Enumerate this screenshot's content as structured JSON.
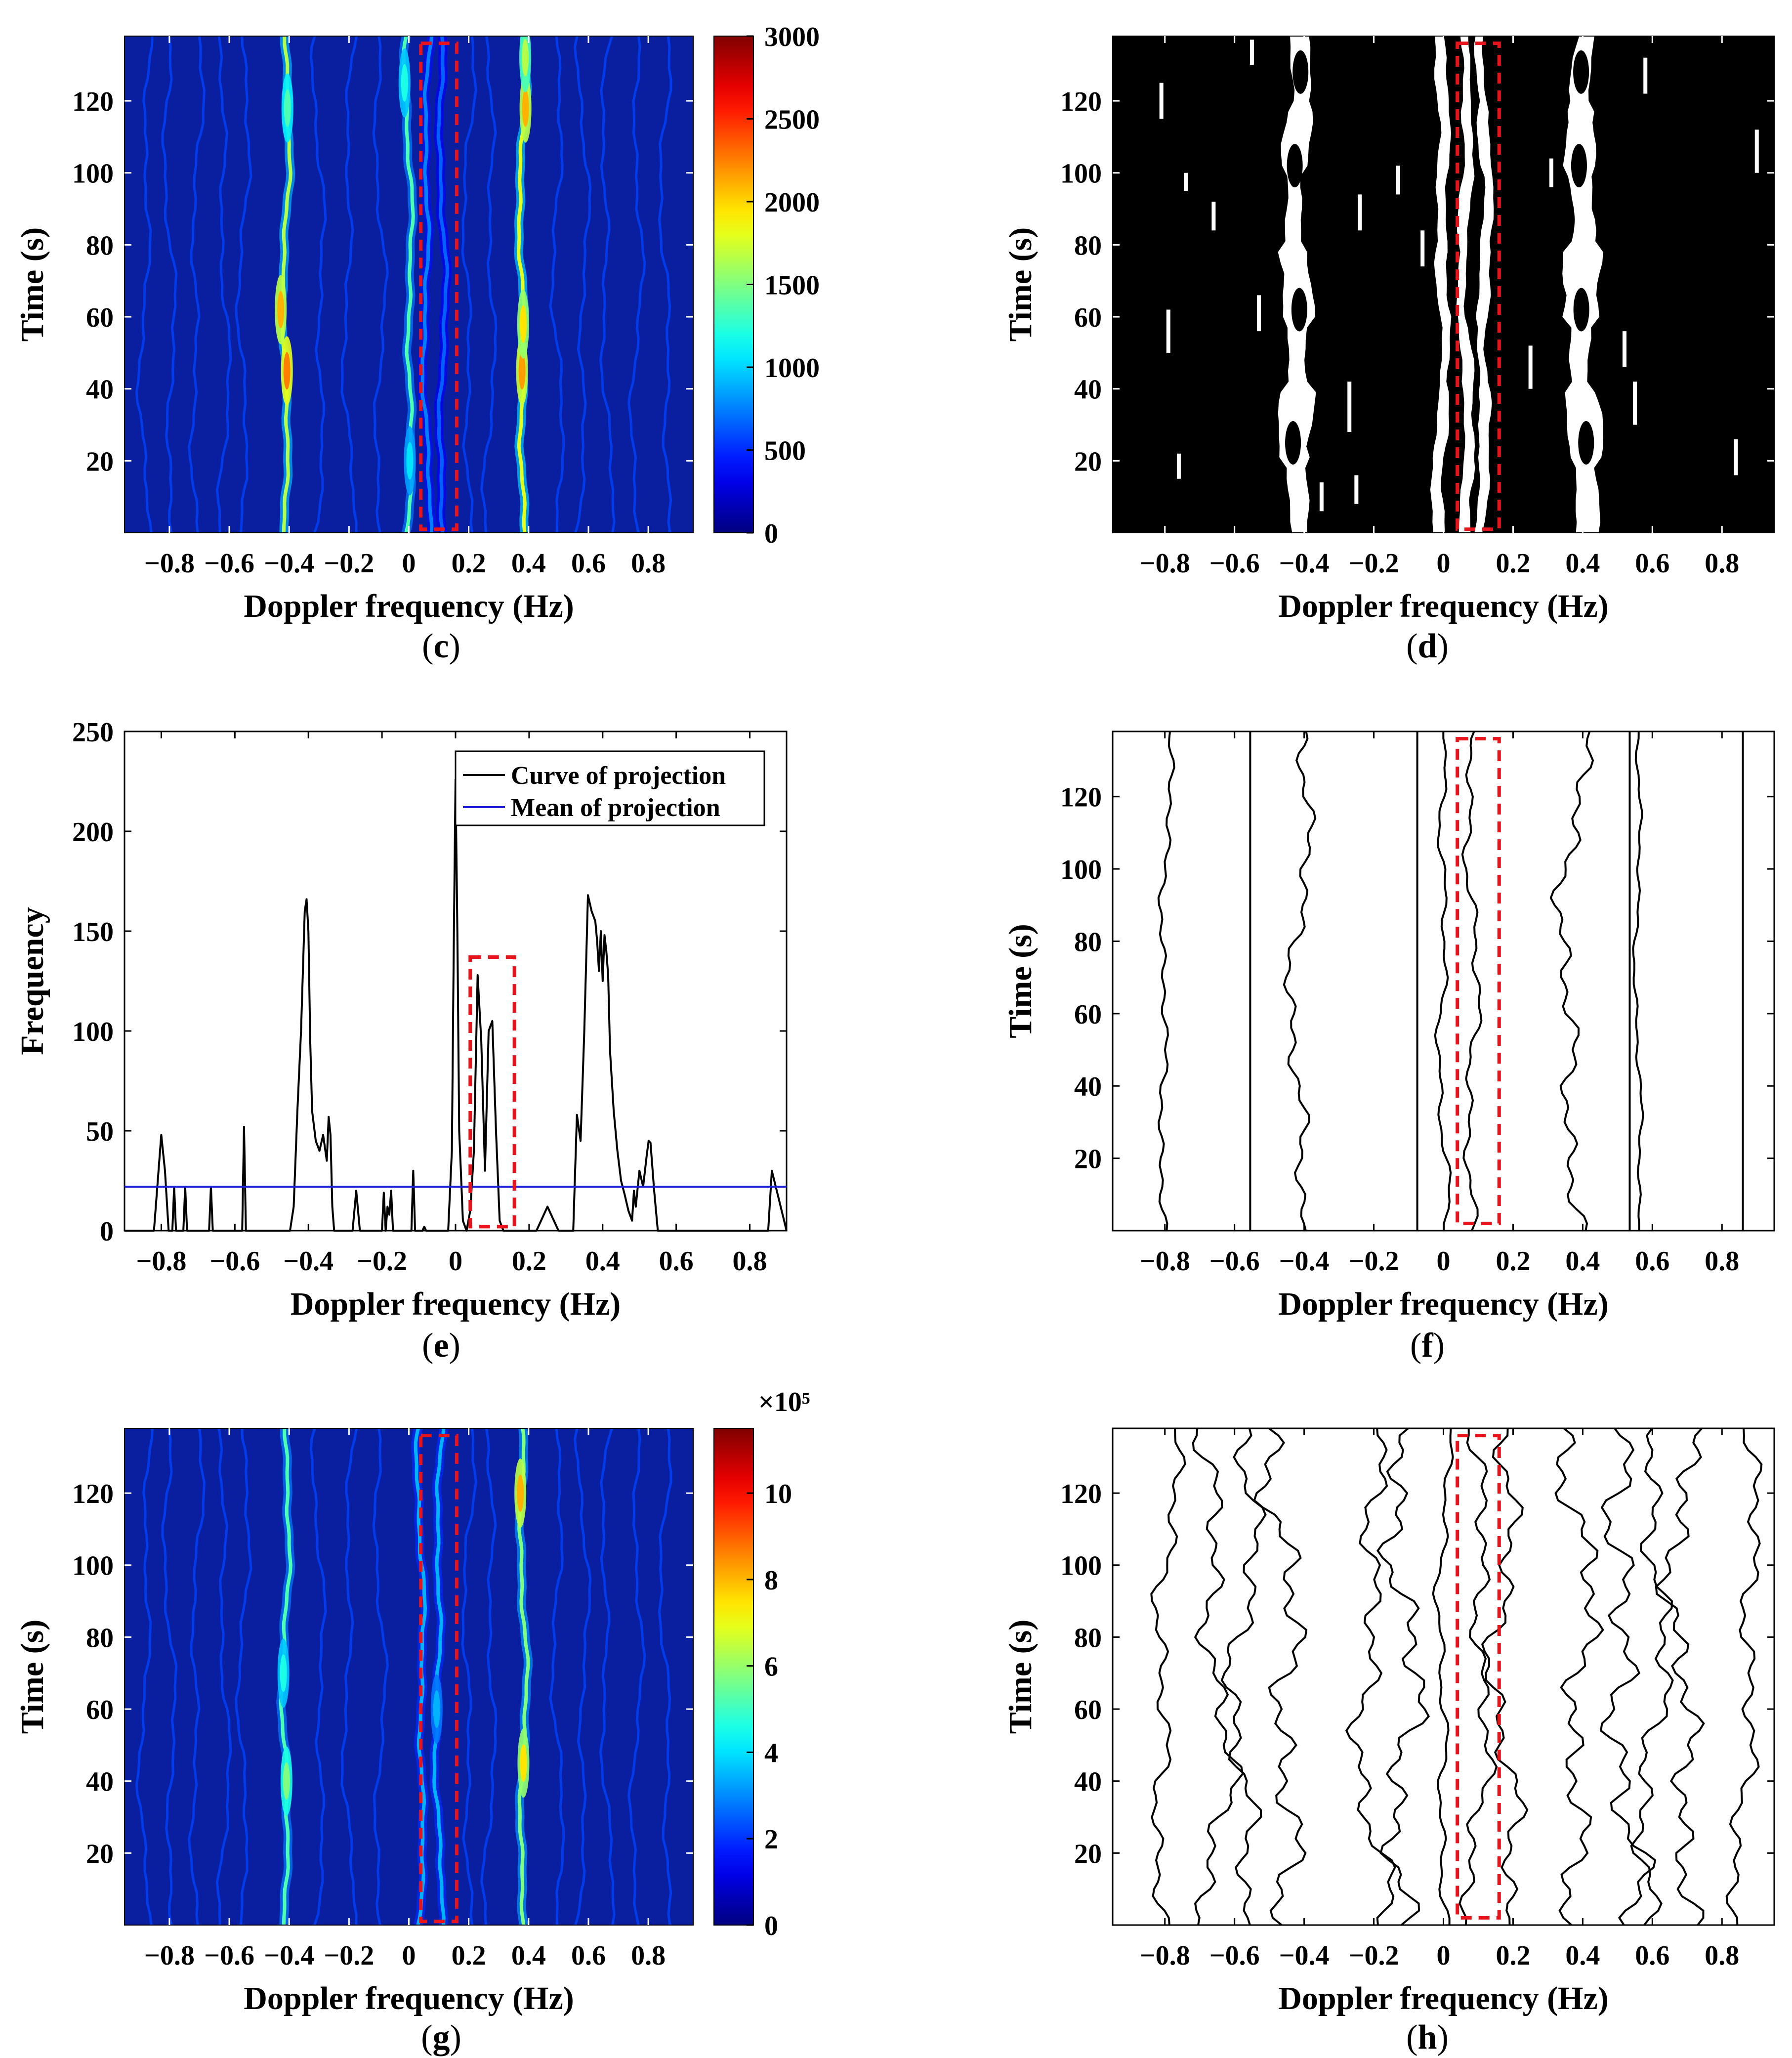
{
  "figure": {
    "colors": {
      "box": "#e8141b",
      "proj_mean": "#1f1fd6",
      "curve": "#000000",
      "heat_bg": "#0a1fa0"
    }
  },
  "chart_data": [
    {
      "id": "c",
      "panel_label": "c",
      "type": "heatmap",
      "xlabel": "Doppler frequency (Hz)",
      "ylabel": "Time (s)",
      "xlim": [
        -0.95,
        0.95
      ],
      "ylim": [
        0,
        138
      ],
      "xticks": [
        "−0.8",
        "−0.6",
        "−0.4",
        "−0.2",
        "0",
        "0.2",
        "0.4",
        "0.6",
        "0.8"
      ],
      "yticks": [
        "20",
        "40",
        "60",
        "80",
        "100",
        "120"
      ],
      "colorbar": {
        "min": 0,
        "max": 3000,
        "ticks": [
          "0",
          "500",
          "1000",
          "1500",
          "2000",
          "2500",
          "3000"
        ],
        "exponent": ""
      },
      "highlight_box": {
        "x": [
          0.04,
          0.16
        ],
        "y": [
          1,
          136
        ]
      },
      "ridges": [
        {
          "f": -0.41,
          "amp": 0.55,
          "hot": [
            [
              45,
              0.75
            ],
            [
              62,
              0.7
            ],
            [
              118,
              0.45
            ]
          ]
        },
        {
          "f": 0.0,
          "amp": 0.45,
          "hot": [
            [
              125,
              0.4
            ],
            [
              20,
              0.35
            ]
          ]
        },
        {
          "f": 0.06,
          "amp": 0.25,
          "hot": []
        },
        {
          "f": 0.11,
          "amp": 0.22,
          "hot": []
        },
        {
          "f": 0.38,
          "amp": 0.6,
          "hot": [
            [
              45,
              0.72
            ],
            [
              58,
              0.65
            ],
            [
              118,
              0.7
            ],
            [
              132,
              0.55
            ]
          ]
        }
      ]
    },
    {
      "id": "d",
      "panel_label": "d",
      "type": "heatmap",
      "xlabel": "Doppler frequency (Hz)",
      "ylabel": "Time (s)",
      "xlim": [
        -0.95,
        0.95
      ],
      "ylim": [
        0,
        138
      ],
      "xticks": [
        "−0.8",
        "−0.6",
        "−0.4",
        "−0.2",
        "0",
        "0.2",
        "0.4",
        "0.6",
        "0.8"
      ],
      "yticks": [
        "20",
        "40",
        "60",
        "80",
        "100",
        "120"
      ],
      "highlight_box": {
        "x": [
          0.04,
          0.16
        ],
        "y": [
          1,
          136
        ]
      },
      "binary_bands": [
        {
          "f": -0.42,
          "w": [
            0.05,
            0.09,
            0.05,
            0.08,
            0.04,
            0.07,
            0.05
          ]
        },
        {
          "f": -0.005,
          "w": [
            0.03,
            0.03,
            0.02,
            0.03,
            0.025,
            0.03,
            0.03
          ]
        },
        {
          "f": 0.065,
          "w": [
            0.03,
            0.025,
            0.03,
            0.02,
            0.03,
            0.025,
            0.02
          ]
        },
        {
          "f": 0.115,
          "w": [
            0.025,
            0.03,
            0.02,
            0.03,
            0.025,
            0.03,
            0.02
          ]
        },
        {
          "f": 0.4,
          "w": [
            0.06,
            0.09,
            0.05,
            0.1,
            0.06,
            0.08,
            0.05
          ]
        }
      ],
      "binary_segments": [
        {
          "f": -0.79,
          "y": [
            50,
            62
          ]
        },
        {
          "f": -0.76,
          "y": [
            15,
            22
          ]
        },
        {
          "f": -0.81,
          "y": [
            115,
            125
          ]
        },
        {
          "f": -0.74,
          "y": [
            95,
            100
          ]
        },
        {
          "f": -0.66,
          "y": [
            84,
            92
          ]
        },
        {
          "f": -0.55,
          "y": [
            130,
            137
          ]
        },
        {
          "f": -0.53,
          "y": [
            56,
            66
          ]
        },
        {
          "f": -0.27,
          "y": [
            28,
            42
          ]
        },
        {
          "f": -0.24,
          "y": [
            84,
            94
          ]
        },
        {
          "f": -0.25,
          "y": [
            8,
            16
          ]
        },
        {
          "f": -0.13,
          "y": [
            94,
            102
          ]
        },
        {
          "f": -0.06,
          "y": [
            74,
            84
          ]
        },
        {
          "f": 0.25,
          "y": [
            40,
            52
          ]
        },
        {
          "f": 0.52,
          "y": [
            46,
            56
          ]
        },
        {
          "f": 0.55,
          "y": [
            30,
            42
          ]
        },
        {
          "f": 0.58,
          "y": [
            122,
            132
          ]
        },
        {
          "f": 0.84,
          "y": [
            16,
            26
          ]
        },
        {
          "f": 0.9,
          "y": [
            100,
            112
          ]
        },
        {
          "f": -0.35,
          "y": [
            6,
            14
          ]
        },
        {
          "f": 0.31,
          "y": [
            96,
            104
          ]
        }
      ]
    },
    {
      "id": "e",
      "panel_label": "e",
      "type": "line",
      "xlabel": "Doppler frequency (Hz)",
      "ylabel": "Frequency",
      "xlim": [
        -0.9,
        0.9
      ],
      "ylim": [
        0,
        250
      ],
      "xticks": [
        "−0.8",
        "−0.6",
        "−0.4",
        "−0.2",
        "0",
        "0.2",
        "0.4",
        "0.6",
        "0.8"
      ],
      "yticks": [
        "0",
        "50",
        "100",
        "150",
        "200",
        "250"
      ],
      "legend": [
        "Curve of projection",
        "Mean of projection"
      ],
      "mean": 22,
      "highlight_box": {
        "x": [
          0.04,
          0.16
        ],
        "y": [
          2,
          137
        ]
      },
      "x": [
        -0.9,
        -0.82,
        -0.8,
        -0.79,
        -0.78,
        -0.77,
        -0.765,
        -0.76,
        -0.755,
        -0.74,
        -0.735,
        -0.73,
        -0.67,
        -0.665,
        -0.66,
        -0.58,
        -0.575,
        -0.57,
        -0.45,
        -0.44,
        -0.43,
        -0.42,
        -0.41,
        -0.405,
        -0.4,
        -0.395,
        -0.39,
        -0.38,
        -0.37,
        -0.36,
        -0.35,
        -0.345,
        -0.34,
        -0.335,
        -0.33,
        -0.32,
        -0.31,
        -0.3,
        -0.28,
        -0.27,
        -0.26,
        -0.2,
        -0.195,
        -0.19,
        -0.185,
        -0.18,
        -0.175,
        -0.17,
        -0.12,
        -0.115,
        -0.11,
        -0.105,
        -0.1,
        -0.09,
        -0.085,
        -0.08,
        -0.02,
        -0.01,
        -0.005,
        0.0,
        0.005,
        0.01,
        0.02,
        0.03,
        0.04,
        0.05,
        0.06,
        0.07,
        0.08,
        0.09,
        0.1,
        0.11,
        0.12,
        0.13,
        0.22,
        0.25,
        0.28,
        0.3,
        0.32,
        0.33,
        0.34,
        0.35,
        0.36,
        0.37,
        0.38,
        0.385,
        0.39,
        0.395,
        0.4,
        0.405,
        0.41,
        0.415,
        0.42,
        0.43,
        0.44,
        0.45,
        0.46,
        0.47,
        0.48,
        0.485,
        0.49,
        0.5,
        0.51,
        0.52,
        0.525,
        0.53,
        0.54,
        0.55,
        0.56,
        0.57,
        0.84,
        0.85,
        0.86,
        0.9
      ],
      "y": [
        0,
        0,
        48,
        30,
        0,
        0,
        22,
        0,
        0,
        0,
        22,
        0,
        0,
        22,
        0,
        0,
        52,
        0,
        0,
        12,
        60,
        100,
        160,
        166,
        150,
        95,
        60,
        45,
        40,
        48,
        35,
        57,
        48,
        12,
        0,
        0,
        0,
        0,
        0,
        20,
        0,
        0,
        19,
        0,
        12,
        8,
        20,
        0,
        0,
        30,
        0,
        0,
        0,
        0,
        2,
        0,
        0,
        40,
        140,
        226,
        150,
        50,
        5,
        0,
        10,
        40,
        128,
        95,
        30,
        100,
        105,
        50,
        5,
        0,
        0,
        12,
        0,
        0,
        0,
        58,
        45,
        100,
        168,
        160,
        155,
        145,
        130,
        150,
        125,
        148,
        140,
        128,
        90,
        60,
        40,
        25,
        18,
        10,
        5,
        20,
        12,
        30,
        22,
        38,
        45,
        44,
        20,
        0,
        0,
        0,
        0,
        0,
        30,
        0
      ]
    },
    {
      "id": "f",
      "panel_label": "f",
      "type": "line",
      "xlabel": "Doppler frequency (Hz)",
      "ylabel": "Time (s)",
      "xlim": [
        -0.95,
        0.95
      ],
      "ylim": [
        0,
        138
      ],
      "xticks": [
        "−0.8",
        "−0.6",
        "−0.4",
        "−0.2",
        "0",
        "0.2",
        "0.4",
        "0.6",
        "0.8"
      ],
      "yticks": [
        "20",
        "40",
        "60",
        "80",
        "100",
        "120"
      ],
      "highlight_box": {
        "x": [
          0.04,
          0.16
        ],
        "y": [
          2,
          136
        ]
      },
      "contours": [
        {
          "f0": -0.8,
          "amp": [
            0.01,
            -0.005,
            0.008,
            -0.006
          ]
        },
        {
          "f0": -0.555,
          "amp": [
            0,
            0,
            0,
            0
          ]
        },
        {
          "f0": -0.41,
          "amp": [
            0.015,
            -0.012,
            0.02,
            -0.01
          ]
        },
        {
          "f0": -0.075,
          "amp": [
            0,
            0,
            0,
            0
          ]
        },
        {
          "f0": 0.0,
          "amp": [
            0.01,
            -0.008,
            0.006,
            -0.004
          ]
        },
        {
          "f0": 0.08,
          "amp": [
            0.012,
            -0.01,
            0.008,
            -0.006
          ]
        },
        {
          "f0": 0.37,
          "amp": [
            0.02,
            -0.015,
            0.025,
            -0.012
          ]
        },
        {
          "f0": 0.535,
          "amp": [
            0,
            0,
            0,
            0
          ]
        },
        {
          "f0": 0.56,
          "amp": [
            0.006,
            -0.004,
            0.005,
            -0.003
          ]
        },
        {
          "f0": 0.86,
          "amp": [
            0,
            0,
            0,
            0
          ]
        }
      ]
    },
    {
      "id": "g",
      "panel_label": "g",
      "type": "heatmap",
      "xlabel": "Doppler frequency (Hz)",
      "ylabel": "Time (s)",
      "xlim": [
        -0.95,
        0.95
      ],
      "ylim": [
        0,
        138
      ],
      "xticks": [
        "−0.8",
        "−0.6",
        "−0.4",
        "−0.2",
        "0",
        "0.2",
        "0.4",
        "0.6",
        "0.8"
      ],
      "yticks": [
        "20",
        "40",
        "60",
        "80",
        "100",
        "120"
      ],
      "colorbar": {
        "min": 0,
        "max": 11.5,
        "ticks": [
          "0",
          "2",
          "4",
          "6",
          "8",
          "10"
        ],
        "exponent": "×10⁵"
      },
      "highlight_box": {
        "x": [
          0.04,
          0.16
        ],
        "y": [
          1,
          136
        ]
      },
      "ridges": [
        {
          "f": -0.41,
          "amp": 0.45,
          "hot": [
            [
              40,
              0.5
            ],
            [
              70,
              0.4
            ]
          ]
        },
        {
          "f": 0.04,
          "amp": 0.3,
          "hot": []
        },
        {
          "f": 0.1,
          "amp": 0.3,
          "hot": [
            [
              60,
              0.3
            ]
          ]
        },
        {
          "f": 0.38,
          "amp": 0.5,
          "hot": [
            [
              45,
              0.65
            ],
            [
              120,
              0.7
            ]
          ]
        }
      ]
    },
    {
      "id": "h",
      "panel_label": "h",
      "type": "line",
      "xlabel": "Doppler frequency (Hz)",
      "ylabel": "Time (s)",
      "xlim": [
        -0.95,
        0.95
      ],
      "ylim": [
        0,
        138
      ],
      "xticks": [
        "−0.8",
        "−0.6",
        "−0.4",
        "−0.2",
        "0",
        "0.2",
        "0.4",
        "0.6",
        "0.8"
      ],
      "yticks": [
        "20",
        "40",
        "60",
        "80",
        "100",
        "120"
      ],
      "highlight_box": {
        "x": [
          0.04,
          0.16
        ],
        "y": [
          2,
          136
        ]
      },
      "contours": [
        {
          "f0": -0.8,
          "amp": [
            0.02,
            -0.015,
            0.018,
            -0.01
          ]
        },
        {
          "f0": -0.66,
          "amp": [
            0.03,
            -0.02,
            0.025,
            -0.015
          ]
        },
        {
          "f0": -0.57,
          "amp": [
            0.025,
            -0.02,
            0.02,
            -0.015
          ]
        },
        {
          "f0": -0.46,
          "amp": [
            0.03,
            -0.025,
            0.02,
            -0.02
          ]
        },
        {
          "f0": -0.2,
          "amp": [
            0.025,
            -0.02,
            0.03,
            -0.015
          ]
        },
        {
          "f0": -0.12,
          "amp": [
            0.03,
            -0.025,
            0.02,
            -0.02
          ]
        },
        {
          "f0": 0.0,
          "amp": [
            0.01,
            -0.01,
            0.008,
            -0.005
          ]
        },
        {
          "f0": 0.1,
          "amp": [
            0.02,
            -0.015,
            0.018,
            -0.012
          ]
        },
        {
          "f0": 0.18,
          "amp": [
            0.025,
            -0.02,
            0.02,
            -0.015
          ]
        },
        {
          "f0": 0.38,
          "amp": [
            0.03,
            -0.02,
            0.025,
            -0.02
          ]
        },
        {
          "f0": 0.52,
          "amp": [
            0.025,
            -0.03,
            0.02,
            -0.02
          ]
        },
        {
          "f0": 0.6,
          "amp": [
            0.02,
            -0.02,
            0.025,
            -0.015
          ]
        },
        {
          "f0": 0.69,
          "amp": [
            0.025,
            -0.02,
            0.02,
            -0.02
          ]
        },
        {
          "f0": 0.87,
          "amp": [
            0.02,
            -0.015,
            0.02,
            -0.012
          ]
        }
      ]
    }
  ]
}
